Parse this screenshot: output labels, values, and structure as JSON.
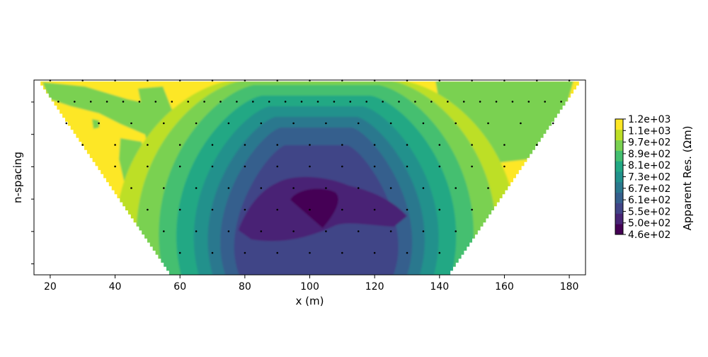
{
  "chart_data": {
    "type": "contour",
    "title": "",
    "xlabel": "x (m)",
    "ylabel": "n-spacing",
    "xlim": [
      15,
      185
    ],
    "x_ticks": [
      20,
      40,
      60,
      80,
      100,
      120,
      140,
      160,
      180
    ],
    "y_ticks": [
      "",
      "",
      "",
      "",
      "",
      ""
    ],
    "grid": false,
    "colorbar": {
      "label": "Apparent Res. (Ωm)",
      "colormap": "viridis",
      "tick_labels": [
        "4.6e+02",
        "5.0e+02",
        "5.5e+02",
        "6.1e+02",
        "6.7e+02",
        "7.3e+02",
        "8.1e+02",
        "8.9e+02",
        "9.7e+02",
        "1.1e+03",
        "1.2e+03"
      ],
      "level_colors": [
        "#440154",
        "#482475",
        "#414487",
        "#355f8d",
        "#2a788e",
        "#21918c",
        "#22a884",
        "#44bf70",
        "#7ad151",
        "#bddf26",
        "#fde725"
      ]
    },
    "pseudosection": {
      "electrode_start_x": 17.5,
      "electrode_spacing": 5,
      "levels": [
        {
          "x_start": 20,
          "x_end": 180,
          "step": 10
        },
        {
          "x_start": 22.5,
          "x_end": 177.5,
          "step": 5
        },
        {
          "x_start": 25,
          "x_end": 175,
          "step": 10
        },
        {
          "x_start": 30,
          "x_end": 170,
          "step": 10
        },
        {
          "x_start": 40,
          "x_end": 160,
          "step": 10
        },
        {
          "x_start": 45,
          "x_end": 155,
          "step": 10
        },
        {
          "x_start": 50,
          "x_end": 150,
          "step": 10
        },
        {
          "x_start": 55,
          "x_end": 145,
          "step": 10
        },
        {
          "x_start": 60,
          "x_end": 140,
          "step": 10
        }
      ],
      "low_resistivity_center": {
        "x": 100,
        "level": 5.5,
        "value": 460
      },
      "background_value": 1150
    }
  }
}
